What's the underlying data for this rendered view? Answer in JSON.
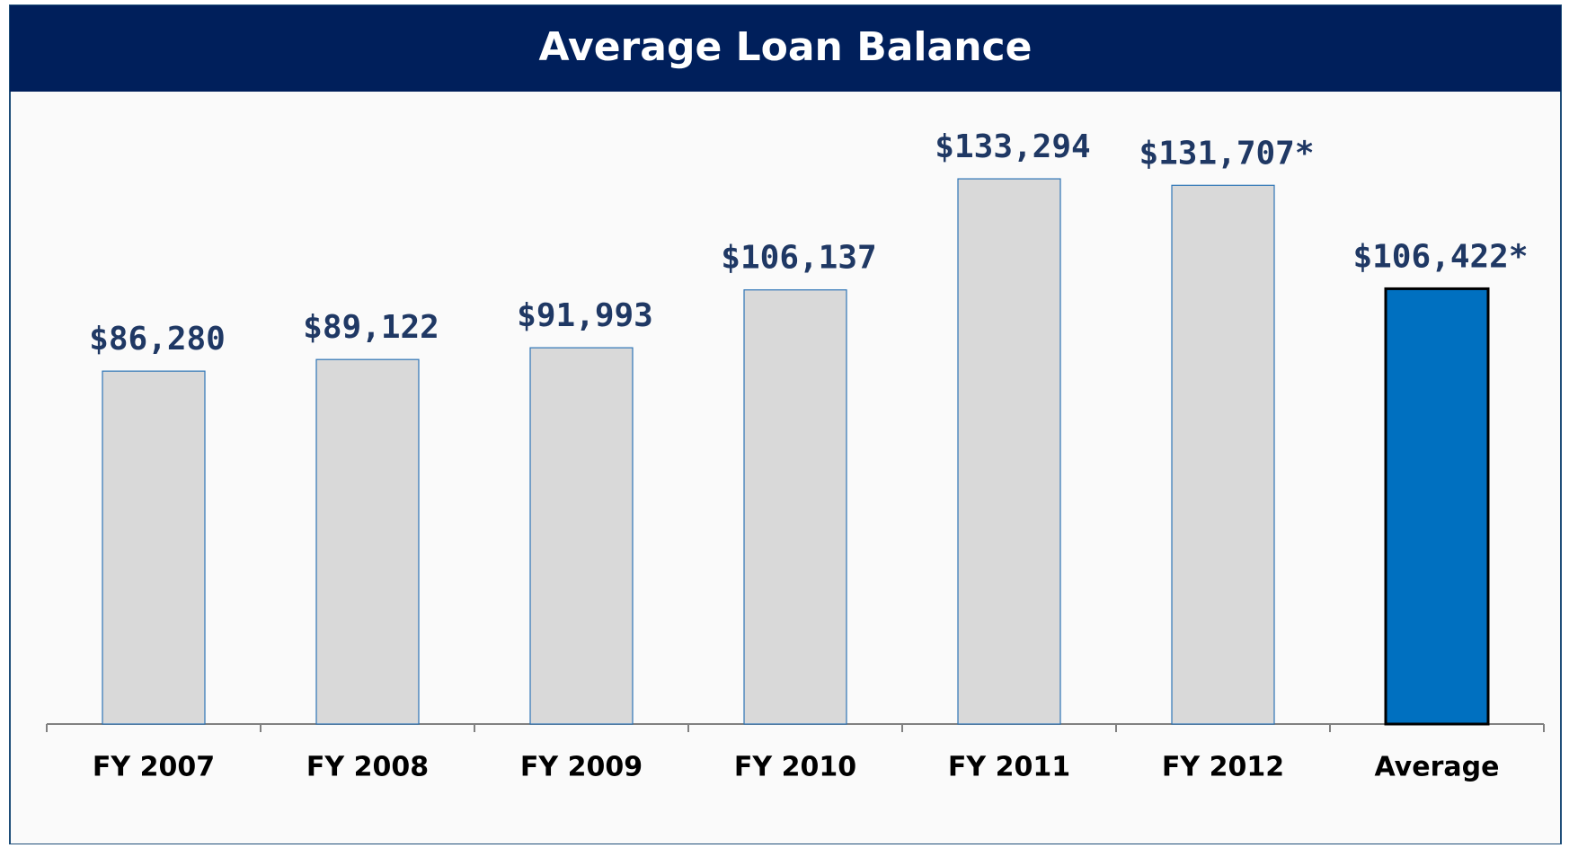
{
  "chart_data": {
    "type": "bar",
    "title": "Average Loan Balance",
    "categories": [
      "FY 2007",
      "FY 2008",
      "FY 2009",
      "FY 2010",
      "FY 2011",
      "FY 2012",
      "Average"
    ],
    "values": [
      86280,
      89122,
      91993,
      106137,
      133294,
      131707,
      106422
    ],
    "value_labels": [
      "$86,280",
      "$89,122",
      "$91,993",
      "$106,137",
      "$133,294",
      "$131,707*",
      "$106,422*"
    ],
    "colors": [
      "#d9d9d9",
      "#d9d9d9",
      "#d9d9d9",
      "#d9d9d9",
      "#d9d9d9",
      "#d9d9d9",
      "#0070c0"
    ],
    "edgecolors": [
      "#2e75b6",
      "#2e75b6",
      "#2e75b6",
      "#2e75b6",
      "#2e75b6",
      "#2e75b6",
      "#000000"
    ],
    "ylim": [
      0,
      150000
    ]
  }
}
